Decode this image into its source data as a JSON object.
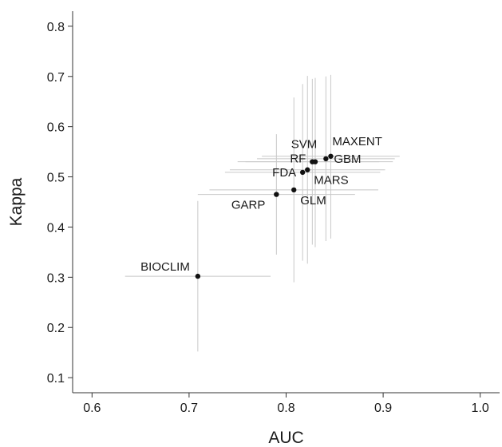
{
  "chart_data": {
    "type": "scatter",
    "title": "",
    "xlabel": "AUC",
    "ylabel": "Kappa",
    "xlim": [
      0.58,
      1.02
    ],
    "ylim": [
      0.07,
      0.83
    ],
    "xticks": [
      0.6,
      0.7,
      0.8,
      0.9,
      1.0
    ],
    "xtick_labels": [
      "0.6",
      "0.7",
      "0.8",
      "0.9",
      "1.0"
    ],
    "yticks": [
      0.1,
      0.2,
      0.3,
      0.4,
      0.5,
      0.6,
      0.7,
      0.8
    ],
    "ytick_labels": [
      "0.1",
      "0.2",
      "0.3",
      "0.4",
      "0.5",
      "0.6",
      "0.7",
      "0.8"
    ],
    "grid": false,
    "colors": {
      "point": "#111111",
      "errorbar": "#c8c8c8",
      "axis": "#333333"
    },
    "points": [
      {
        "label": "BIOCLIM",
        "x": 0.709,
        "y": 0.302,
        "x_range": [
          0.634,
          0.784
        ],
        "y_range": [
          0.152,
          0.452
        ],
        "label_pos": "upper-left"
      },
      {
        "label": "GARP",
        "x": 0.79,
        "y": 0.465,
        "x_range": [
          0.709,
          0.871
        ],
        "y_range": [
          0.345,
          0.585
        ],
        "label_pos": "lower-left"
      },
      {
        "label": "GLM",
        "x": 0.808,
        "y": 0.474,
        "x_range": [
          0.721,
          0.895
        ],
        "y_range": [
          0.29,
          0.658
        ],
        "label_pos": "lower-right"
      },
      {
        "label": "FDA",
        "x": 0.817,
        "y": 0.509,
        "x_range": [
          0.737,
          0.897
        ],
        "y_range": [
          0.333,
          0.685
        ],
        "label_pos": "left"
      },
      {
        "label": "MARS",
        "x": 0.822,
        "y": 0.514,
        "x_range": [
          0.742,
          0.902
        ],
        "y_range": [
          0.327,
          0.701
        ],
        "label_pos": "lower-right"
      },
      {
        "label": "RF",
        "x": 0.827,
        "y": 0.53,
        "x_range": [
          0.758,
          0.896
        ],
        "y_range": [
          0.365,
          0.695
        ],
        "label_pos": "upper-left"
      },
      {
        "label": "SVM",
        "x": 0.83,
        "y": 0.53,
        "x_range": [
          0.75,
          0.91
        ],
        "y_range": [
          0.36,
          0.697
        ],
        "label_pos": "upper-left"
      },
      {
        "label": "GBM",
        "x": 0.841,
        "y": 0.536,
        "x_range": [
          0.77,
          0.912
        ],
        "y_range": [
          0.372,
          0.7
        ],
        "label_pos": "right"
      },
      {
        "label": "MAXENT",
        "x": 0.846,
        "y": 0.541,
        "x_range": [
          0.775,
          0.917
        ],
        "y_range": [
          0.377,
          0.703
        ],
        "label_pos": "upper-right"
      }
    ]
  }
}
